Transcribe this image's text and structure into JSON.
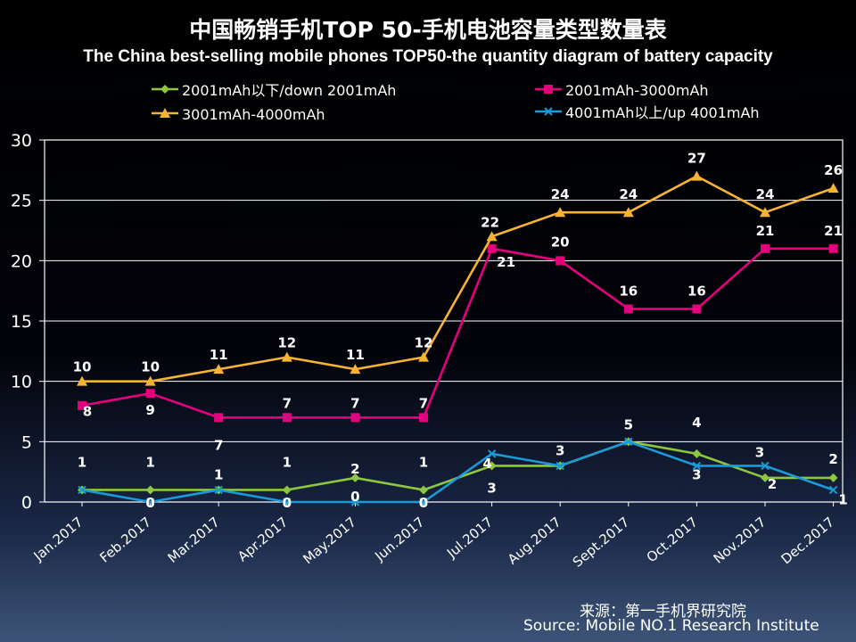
{
  "chart_data": {
    "type": "line",
    "title": "中国畅销手机TOP 50-手机电池容量类型数量表",
    "subtitle": "The China best-selling mobile phones TOP50-the quantity diagram of battery capacity",
    "xlabel": "",
    "ylabel": "",
    "ylim": [
      0,
      30
    ],
    "yticks": [
      0,
      5,
      10,
      15,
      20,
      25,
      30
    ],
    "grid": true,
    "legend_position": "top",
    "categories": [
      "Jan.2017",
      "Feb.2017",
      "Mar.2017",
      "Apr.2017",
      "May.2017",
      "Jun.2017",
      "Jul.2017",
      "Aug.2017",
      "Sept.2017",
      "Oct.2017",
      "Nov.2017",
      "Dec.2017"
    ],
    "series": [
      {
        "name": "2001mAh以下/down 2001mAh",
        "color": "#8dc63f",
        "marker": "diamond",
        "values": [
          1,
          1,
          1,
          1,
          2,
          1,
          3,
          3,
          5,
          4,
          2,
          2
        ]
      },
      {
        "name": "2001mAh-3000mAh",
        "color": "#e6007e",
        "marker": "square",
        "values": [
          8,
          9,
          7,
          7,
          7,
          7,
          21,
          20,
          16,
          16,
          21,
          21
        ]
      },
      {
        "name": "3001mAh-4000mAh",
        "color": "#f7b334",
        "marker": "triangle",
        "values": [
          10,
          10,
          11,
          12,
          11,
          12,
          22,
          24,
          24,
          27,
          24,
          26
        ]
      },
      {
        "name": "4001mAh以上/up 4001mAh",
        "color": "#1a9bd7",
        "marker": "x",
        "values": [
          1,
          0,
          1,
          0,
          0,
          0,
          4,
          3,
          5,
          3,
          3,
          1
        ]
      }
    ]
  },
  "source": {
    "cn": "来源：第一手机界研究院",
    "en": "Source: Mobile NO.1 Research Institute"
  }
}
